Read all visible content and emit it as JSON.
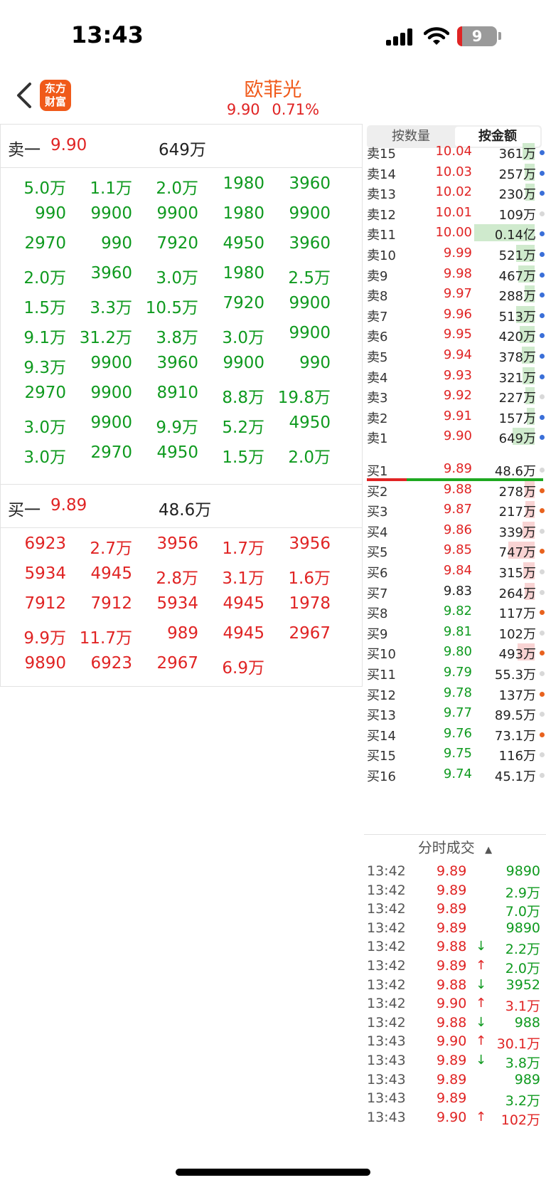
{
  "status_bar": {
    "time": "13:43",
    "battery": "9"
  },
  "header": {
    "logo_text": "东方财富",
    "title": "欧菲光",
    "price": "9.90",
    "change_pct": "0.71%"
  },
  "left_panel": {
    "sell_level": {
      "label": "卖一",
      "price": "9.90",
      "volume": "649万"
    },
    "sell_queue": [
      [
        "5.0万",
        "1.1万",
        "2.0万",
        "1980",
        "3960"
      ],
      [
        "990",
        "9900",
        "9900",
        "1980",
        "9900"
      ],
      [
        "2970",
        "990",
        "7920",
        "4950",
        "3960"
      ],
      [
        "2.0万",
        "3960",
        "3.0万",
        "1980",
        "2.5万"
      ],
      [
        "1.5万",
        "3.3万",
        "10.5万",
        "7920",
        "9900"
      ],
      [
        "9.1万",
        "31.2万",
        "3.8万",
        "3.0万",
        "9900"
      ],
      [
        "9.3万",
        "9900",
        "3960",
        "9900",
        "990"
      ],
      [
        "2970",
        "9900",
        "8910",
        "8.8万",
        "19.8万"
      ],
      [
        "3.0万",
        "9900",
        "9.9万",
        "5.2万",
        "4950"
      ],
      [
        "3.0万",
        "2970",
        "4950",
        "1.5万",
        "2.0万"
      ]
    ],
    "buy_level": {
      "label": "买一",
      "price": "9.89",
      "volume": "48.6万"
    },
    "buy_queue": [
      [
        "6923",
        "2.7万",
        "3956",
        "1.7万",
        "3956"
      ],
      [
        "5934",
        "4945",
        "2.8万",
        "3.1万",
        "1.6万"
      ],
      [
        "7912",
        "7912",
        "5934",
        "4945",
        "1978"
      ],
      [
        "9.9万",
        "11.7万",
        "989",
        "4945",
        "2967"
      ],
      [
        "9890",
        "6923",
        "2967",
        "6.9万",
        ""
      ]
    ]
  },
  "tabs": [
    {
      "label": "按数量",
      "active": false
    },
    {
      "label": "按金额",
      "active": true
    }
  ],
  "order_book": {
    "sells": [
      {
        "label": "卖15",
        "price": "10.04",
        "value": "361万",
        "price_color": "red",
        "bar": 0.12,
        "dot": "#3a6fd8"
      },
      {
        "label": "卖14",
        "price": "10.03",
        "value": "257万",
        "price_color": "red",
        "bar": 0.1,
        "dot": "#3a6fd8"
      },
      {
        "label": "卖13",
        "price": "10.02",
        "value": "230万",
        "price_color": "red",
        "bar": 0.09,
        "dot": "#3a6fd8"
      },
      {
        "label": "卖12",
        "price": "10.01",
        "value": "109万",
        "price_color": "red",
        "bar": 0.0,
        "dot": "#d8d8d8"
      },
      {
        "label": "卖11",
        "price": "10.00",
        "value": "0.14亿",
        "price_color": "red",
        "bar": 0.6,
        "dot": "#3a6fd8"
      },
      {
        "label": "卖10",
        "price": "9.99",
        "value": "521万",
        "price_color": "red",
        "bar": 0.18,
        "dot": "#3a6fd8"
      },
      {
        "label": "卖9",
        "price": "9.98",
        "value": "467万",
        "price_color": "red",
        "bar": 0.16,
        "dot": "#3a6fd8"
      },
      {
        "label": "卖8",
        "price": "9.97",
        "value": "288万",
        "price_color": "red",
        "bar": 0.1,
        "dot": "#3a6fd8"
      },
      {
        "label": "卖7",
        "price": "9.96",
        "value": "513万",
        "price_color": "red",
        "bar": 0.18,
        "dot": "#3a6fd8"
      },
      {
        "label": "卖6",
        "price": "9.95",
        "value": "420万",
        "price_color": "red",
        "bar": 0.15,
        "dot": "#3a6fd8"
      },
      {
        "label": "卖5",
        "price": "9.94",
        "value": "378万",
        "price_color": "red",
        "bar": 0.13,
        "dot": "#3a6fd8"
      },
      {
        "label": "卖4",
        "price": "9.93",
        "value": "321万",
        "price_color": "red",
        "bar": 0.12,
        "dot": "#3a6fd8"
      },
      {
        "label": "卖3",
        "price": "9.92",
        "value": "227万",
        "price_color": "red",
        "bar": 0.09,
        "dot": "#d8d8d8"
      },
      {
        "label": "卖2",
        "price": "9.91",
        "value": "157万",
        "price_color": "red",
        "bar": 0.08,
        "dot": "#3a6fd8"
      },
      {
        "label": "卖1",
        "price": "9.90",
        "value": "649万",
        "price_color": "red",
        "bar": 0.22,
        "dot": "#3a6fd8"
      }
    ],
    "buys": [
      {
        "label": "买1",
        "price": "9.89",
        "value": "48.6万",
        "price_color": "red",
        "bar": 0.0,
        "dot": "#d8d8d8"
      },
      {
        "label": "买2",
        "price": "9.88",
        "value": "278万",
        "price_color": "red",
        "bar": 0.1,
        "dot": "#e8621e"
      },
      {
        "label": "买3",
        "price": "9.87",
        "value": "217万",
        "price_color": "red",
        "bar": 0.09,
        "dot": "#e8621e"
      },
      {
        "label": "买4",
        "price": "9.86",
        "value": "339万",
        "price_color": "red",
        "bar": 0.12,
        "dot": "#d8d8d8"
      },
      {
        "label": "买5",
        "price": "9.85",
        "value": "747万",
        "price_color": "red",
        "bar": 0.26,
        "dot": "#e8621e"
      },
      {
        "label": "买6",
        "price": "9.84",
        "value": "315万",
        "price_color": "red",
        "bar": 0.11,
        "dot": "#d8d8d8"
      },
      {
        "label": "买7",
        "price": "9.83",
        "value": "264万",
        "price_color": "dark",
        "bar": 0.1,
        "dot": "#d8d8d8"
      },
      {
        "label": "买8",
        "price": "9.82",
        "value": "117万",
        "price_color": "green",
        "bar": 0.0,
        "dot": "#e8621e"
      },
      {
        "label": "买9",
        "price": "9.81",
        "value": "102万",
        "price_color": "green",
        "bar": 0.0,
        "dot": "#d8d8d8"
      },
      {
        "label": "买10",
        "price": "9.80",
        "value": "493万",
        "price_color": "green",
        "bar": 0.17,
        "dot": "#e8621e"
      },
      {
        "label": "买11",
        "price": "9.79",
        "value": "55.3万",
        "price_color": "green",
        "bar": 0.0,
        "dot": "#d8d8d8"
      },
      {
        "label": "买12",
        "price": "9.78",
        "value": "137万",
        "price_color": "green",
        "bar": 0.0,
        "dot": "#e8621e"
      },
      {
        "label": "买13",
        "price": "9.77",
        "value": "89.5万",
        "price_color": "green",
        "bar": 0.0,
        "dot": "#d8d8d8"
      },
      {
        "label": "买14",
        "price": "9.76",
        "value": "73.1万",
        "price_color": "green",
        "bar": 0.0,
        "dot": "#e8621e"
      },
      {
        "label": "买15",
        "price": "9.75",
        "value": "116万",
        "price_color": "green",
        "bar": 0.0,
        "dot": "#d8d8d8"
      },
      {
        "label": "买16",
        "price": "9.74",
        "value": "45.1万",
        "price_color": "green",
        "bar": 0.0,
        "dot": "#d8d8d8"
      }
    ]
  },
  "trades": {
    "header": "分时成交",
    "rows": [
      {
        "time": "13:42",
        "price": "9.89",
        "arrow": "",
        "volume": "9890",
        "vol_color": "green"
      },
      {
        "time": "13:42",
        "price": "9.89",
        "arrow": "",
        "volume": "2.9万",
        "vol_color": "green"
      },
      {
        "time": "13:42",
        "price": "9.89",
        "arrow": "",
        "volume": "7.0万",
        "vol_color": "green"
      },
      {
        "time": "13:42",
        "price": "9.89",
        "arrow": "",
        "volume": "9890",
        "vol_color": "green"
      },
      {
        "time": "13:42",
        "price": "9.88",
        "arrow": "↓",
        "volume": "2.2万",
        "vol_color": "green"
      },
      {
        "time": "13:42",
        "price": "9.89",
        "arrow": "↑",
        "volume": "2.0万",
        "vol_color": "green"
      },
      {
        "time": "13:42",
        "price": "9.88",
        "arrow": "↓",
        "volume": "3952",
        "vol_color": "green"
      },
      {
        "time": "13:42",
        "price": "9.90",
        "arrow": "↑",
        "volume": "3.1万",
        "vol_color": "red"
      },
      {
        "time": "13:42",
        "price": "9.88",
        "arrow": "↓",
        "volume": "988",
        "vol_color": "green"
      },
      {
        "time": "13:43",
        "price": "9.90",
        "arrow": "↑",
        "volume": "30.1万",
        "vol_color": "red"
      },
      {
        "time": "13:43",
        "price": "9.89",
        "arrow": "↓",
        "volume": "3.8万",
        "vol_color": "green"
      },
      {
        "time": "13:43",
        "price": "9.89",
        "arrow": "",
        "volume": "989",
        "vol_color": "green"
      },
      {
        "time": "13:43",
        "price": "9.89",
        "arrow": "",
        "volume": "3.2万",
        "vol_color": "green"
      },
      {
        "time": "13:43",
        "price": "9.90",
        "arrow": "↑",
        "volume": "102万",
        "vol_color": "red"
      }
    ]
  }
}
